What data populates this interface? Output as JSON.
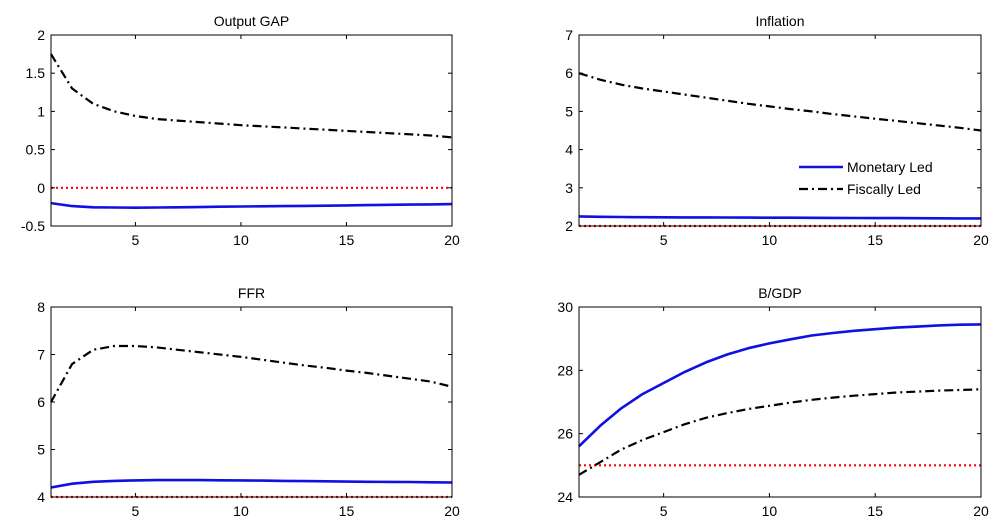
{
  "chart_data": [
    {
      "type": "line",
      "title": "Output GAP",
      "xlim": [
        1,
        20
      ],
      "ylim": [
        -0.5,
        2
      ],
      "xticks": [
        5,
        10,
        15,
        20
      ],
      "yticks": [
        -0.5,
        0,
        0.5,
        1,
        1.5,
        2
      ],
      "ytick_labels": [
        "-0.5",
        "0",
        "0.5",
        "1",
        "1.5",
        "2"
      ],
      "x": [
        1,
        2,
        3,
        4,
        5,
        6,
        7,
        8,
        9,
        10,
        11,
        12,
        13,
        14,
        15,
        16,
        17,
        18,
        19,
        20
      ],
      "series": [
        {
          "style": "monetary",
          "values": [
            -0.2,
            -0.24,
            -0.255,
            -0.258,
            -0.26,
            -0.258,
            -0.255,
            -0.252,
            -0.248,
            -0.245,
            -0.242,
            -0.24,
            -0.237,
            -0.234,
            -0.23,
            -0.227,
            -0.223,
            -0.22,
            -0.217,
            -0.213
          ]
        },
        {
          "style": "fiscal",
          "values": [
            1.75,
            1.3,
            1.1,
            1.0,
            0.94,
            0.9,
            0.88,
            0.86,
            0.84,
            0.82,
            0.805,
            0.79,
            0.775,
            0.76,
            0.745,
            0.73,
            0.715,
            0.7,
            0.685,
            0.66
          ]
        },
        {
          "style": "baseline",
          "values": [
            0,
            0,
            0,
            0,
            0,
            0,
            0,
            0,
            0,
            0,
            0,
            0,
            0,
            0,
            0,
            0,
            0,
            0,
            0,
            0
          ]
        }
      ],
      "grid": false
    },
    {
      "type": "line",
      "title": "Inflation",
      "xlim": [
        1,
        20
      ],
      "ylim": [
        2,
        7
      ],
      "xticks": [
        5,
        10,
        15,
        20
      ],
      "yticks": [
        2,
        3,
        4,
        5,
        6,
        7
      ],
      "ytick_labels": [
        "2",
        "3",
        "4",
        "5",
        "6",
        "7"
      ],
      "x": [
        1,
        2,
        3,
        4,
        5,
        6,
        7,
        8,
        9,
        10,
        11,
        12,
        13,
        14,
        15,
        16,
        17,
        18,
        19,
        20
      ],
      "series": [
        {
          "style": "monetary",
          "name": "Monetary Led",
          "values": [
            2.25,
            2.24,
            2.235,
            2.23,
            2.228,
            2.226,
            2.224,
            2.222,
            2.22,
            2.218,
            2.216,
            2.214,
            2.212,
            2.21,
            2.208,
            2.206,
            2.204,
            2.202,
            2.2,
            2.198
          ]
        },
        {
          "style": "fiscal",
          "name": "Fiscally Led",
          "values": [
            6.0,
            5.83,
            5.7,
            5.6,
            5.52,
            5.44,
            5.36,
            5.28,
            5.2,
            5.13,
            5.06,
            5.0,
            4.93,
            4.87,
            4.81,
            4.75,
            4.69,
            4.63,
            4.57,
            4.5
          ]
        },
        {
          "style": "baseline",
          "values": [
            2,
            2,
            2,
            2,
            2,
            2,
            2,
            2,
            2,
            2,
            2,
            2,
            2,
            2,
            2,
            2,
            2,
            2,
            2,
            2
          ]
        }
      ],
      "legend": "center-right",
      "grid": false
    },
    {
      "type": "line",
      "title": "FFR",
      "xlim": [
        1,
        20
      ],
      "ylim": [
        4,
        8
      ],
      "xticks": [
        5,
        10,
        15,
        20
      ],
      "yticks": [
        4,
        5,
        6,
        7,
        8
      ],
      "ytick_labels": [
        "4",
        "5",
        "6",
        "7",
        "8"
      ],
      "x": [
        1,
        2,
        3,
        4,
        5,
        6,
        7,
        8,
        9,
        10,
        11,
        12,
        13,
        14,
        15,
        16,
        17,
        18,
        19,
        20
      ],
      "series": [
        {
          "style": "monetary",
          "values": [
            4.2,
            4.28,
            4.32,
            4.34,
            4.35,
            4.355,
            4.355,
            4.355,
            4.352,
            4.35,
            4.345,
            4.34,
            4.335,
            4.33,
            4.325,
            4.32,
            4.318,
            4.315,
            4.31,
            4.305
          ]
        },
        {
          "style": "fiscal",
          "values": [
            6.0,
            6.8,
            7.1,
            7.18,
            7.18,
            7.15,
            7.1,
            7.05,
            7.0,
            6.95,
            6.89,
            6.83,
            6.77,
            6.72,
            6.66,
            6.61,
            6.55,
            6.49,
            6.43,
            6.32
          ]
        },
        {
          "style": "baseline",
          "values": [
            4,
            4,
            4,
            4,
            4,
            4,
            4,
            4,
            4,
            4,
            4,
            4,
            4,
            4,
            4,
            4,
            4,
            4,
            4,
            4
          ]
        }
      ],
      "grid": false
    },
    {
      "type": "line",
      "title": "B/GDP",
      "xlim": [
        1,
        20
      ],
      "ylim": [
        24,
        30
      ],
      "xticks": [
        5,
        10,
        15,
        20
      ],
      "yticks": [
        24,
        26,
        28,
        30
      ],
      "ytick_labels": [
        "24",
        "26",
        "28",
        "30"
      ],
      "x": [
        1,
        2,
        3,
        4,
        5,
        6,
        7,
        8,
        9,
        10,
        11,
        12,
        13,
        14,
        15,
        16,
        17,
        18,
        19,
        20
      ],
      "series": [
        {
          "style": "monetary",
          "values": [
            25.6,
            26.25,
            26.8,
            27.25,
            27.6,
            27.95,
            28.25,
            28.5,
            28.7,
            28.85,
            28.98,
            29.1,
            29.18,
            29.25,
            29.3,
            29.35,
            29.38,
            29.42,
            29.44,
            29.45
          ]
        },
        {
          "style": "fiscal",
          "values": [
            24.7,
            25.1,
            25.5,
            25.8,
            26.05,
            26.3,
            26.5,
            26.65,
            26.78,
            26.88,
            26.98,
            27.07,
            27.14,
            27.2,
            27.25,
            27.3,
            27.33,
            27.36,
            27.38,
            27.4
          ]
        },
        {
          "style": "baseline",
          "values": [
            25,
            25,
            25,
            25,
            25,
            25,
            25,
            25,
            25,
            25,
            25,
            25,
            25,
            25,
            25,
            25,
            25,
            25,
            25,
            25
          ]
        }
      ],
      "grid": false
    }
  ],
  "colors": {
    "monetary": "#1010e0",
    "fiscal": "#000000",
    "baseline": "#ff0000",
    "axis": "#000000"
  }
}
